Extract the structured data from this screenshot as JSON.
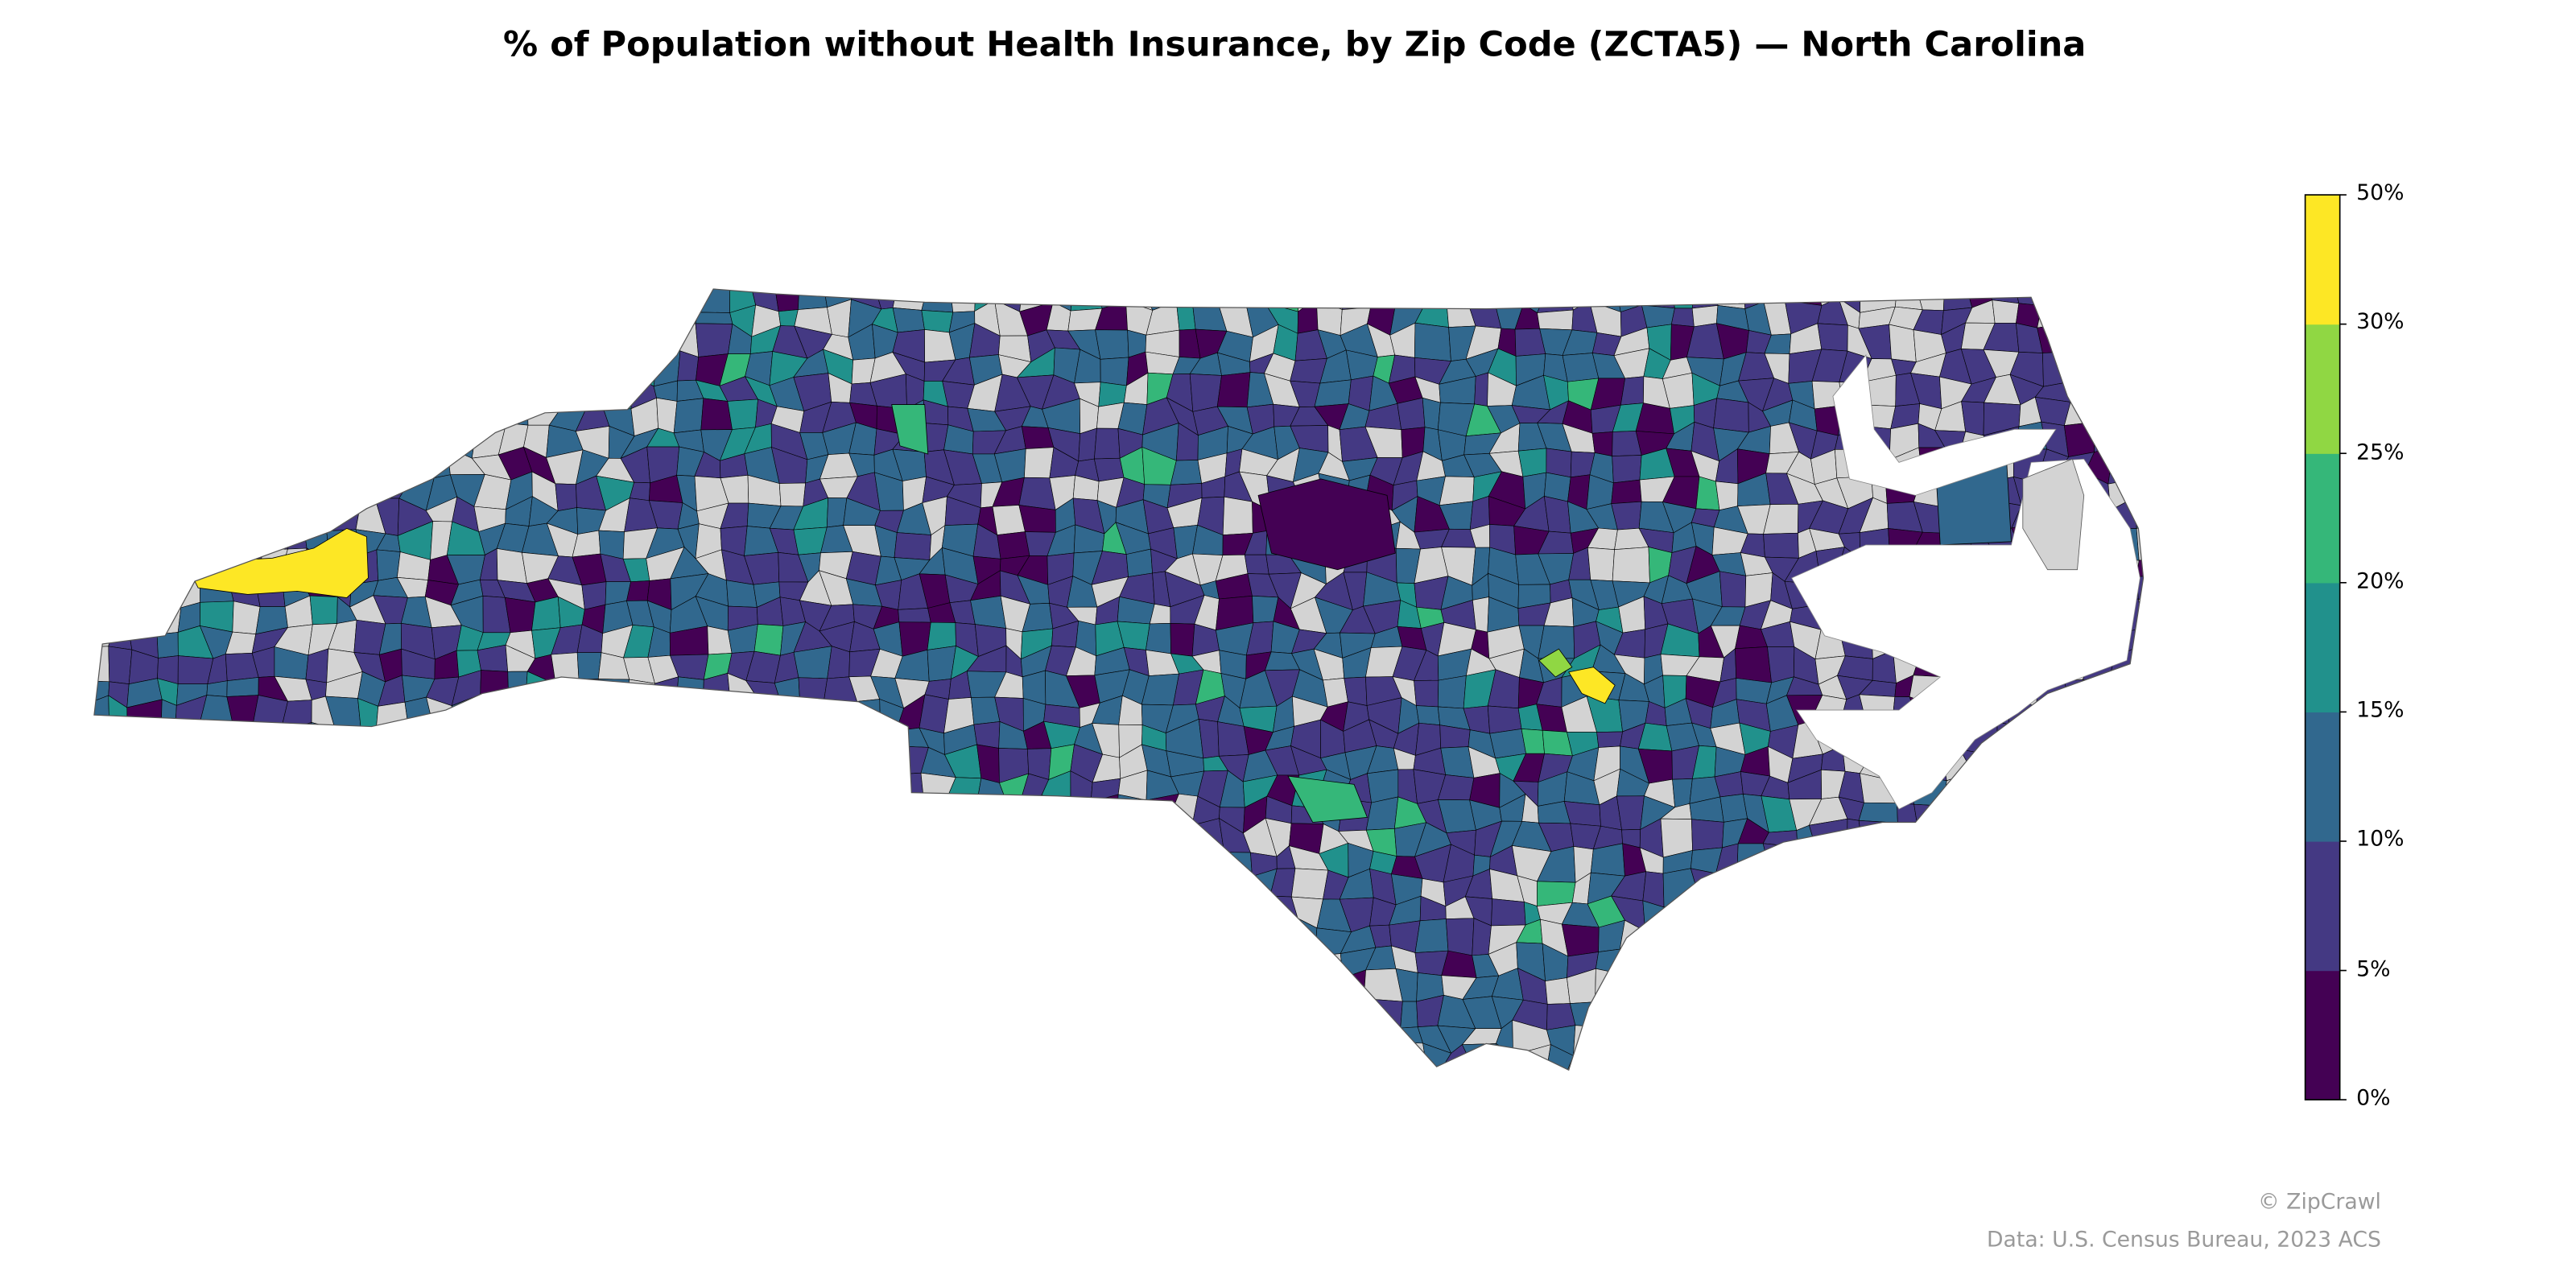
{
  "title": "% of Population without Health Insurance, by Zip Code (ZCTA5) — North Carolina",
  "map": {
    "type": "choropleth",
    "region": "North Carolina",
    "unit": "ZCTA5",
    "no_data_color": "#d3d3d3",
    "border_color": "#000000",
    "legend": {
      "placement": "right",
      "bins": [
        0,
        5,
        10,
        15,
        20,
        25,
        30,
        50
      ],
      "tick_labels": [
        "0%",
        "5%",
        "10%",
        "15%",
        "20%",
        "25%",
        "30%",
        "50%"
      ],
      "colors": [
        "#440154",
        "#443983",
        "#31688e",
        "#21918c",
        "#35b779",
        "#90d743",
        "#fde725"
      ]
    }
  },
  "footer": {
    "credit": "© ZipCrawl",
    "source": "Data: U.S. Census Bureau, 2023 ACS"
  }
}
